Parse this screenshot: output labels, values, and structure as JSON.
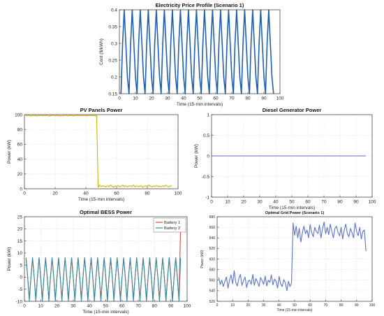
{
  "chart_data": [
    {
      "id": "price",
      "type": "line",
      "title": "Electricity Price Profile (Scenario 1)",
      "xlabel": "Time (15-min intervals)",
      "ylabel": "Cost ($/kWh)",
      "xlim": [
        0,
        100
      ],
      "ylim": [
        0.15,
        0.4
      ],
      "xticks": [
        0,
        10,
        20,
        30,
        40,
        50,
        60,
        70,
        80,
        90,
        100
      ],
      "yticks": [
        0.15,
        0.2,
        0.25,
        0.3,
        0.35,
        0.4
      ],
      "grid": true,
      "series": [
        {
          "color": "#1f5fb0",
          "x": [
            1,
            2,
            3,
            4,
            5,
            6,
            7,
            8,
            9,
            10,
            11,
            12,
            13,
            14,
            15,
            16,
            17,
            18,
            19,
            20,
            21,
            22,
            23,
            24,
            25,
            26,
            27,
            28,
            29,
            30,
            31,
            32,
            33,
            34,
            35,
            36,
            37,
            38,
            39,
            40,
            41,
            42,
            43,
            44,
            45,
            46,
            47,
            48,
            49,
            50,
            51,
            52,
            53,
            54,
            55,
            56,
            57,
            58,
            59,
            60,
            61,
            62,
            63,
            64,
            65,
            66,
            67,
            68,
            69,
            70,
            71,
            72,
            73,
            74,
            75,
            76,
            77,
            78,
            79,
            80,
            81,
            82,
            83,
            84,
            85,
            86,
            87,
            88,
            89,
            90,
            91,
            92,
            93,
            94,
            95,
            96
          ],
          "values": [
            0.15,
            0.3,
            0.4,
            0.3,
            0.2,
            0.15,
            0.3,
            0.4,
            0.3,
            0.2,
            0.15,
            0.3,
            0.4,
            0.3,
            0.2,
            0.15,
            0.3,
            0.4,
            0.3,
            0.2,
            0.15,
            0.3,
            0.4,
            0.3,
            0.2,
            0.15,
            0.3,
            0.4,
            0.3,
            0.2,
            0.15,
            0.3,
            0.4,
            0.3,
            0.2,
            0.15,
            0.3,
            0.4,
            0.3,
            0.2,
            0.15,
            0.3,
            0.4,
            0.3,
            0.2,
            0.15,
            0.3,
            0.4,
            0.3,
            0.2,
            0.15,
            0.3,
            0.4,
            0.3,
            0.2,
            0.15,
            0.3,
            0.4,
            0.3,
            0.2,
            0.15,
            0.3,
            0.4,
            0.3,
            0.2,
            0.15,
            0.3,
            0.4,
            0.3,
            0.2,
            0.15,
            0.3,
            0.4,
            0.3,
            0.2,
            0.15,
            0.3,
            0.4,
            0.3,
            0.2,
            0.15,
            0.3,
            0.4,
            0.3,
            0.2,
            0.15,
            0.3,
            0.4,
            0.3,
            0.2,
            0.15,
            0.3,
            0.4,
            0.3,
            0.2,
            0.15
          ]
        }
      ]
    },
    {
      "id": "pv",
      "type": "line",
      "title": "PV Panels Power",
      "xlabel": "Time (15-min intervals)",
      "ylabel": "Power (kW)",
      "xlim": [
        0,
        100
      ],
      "ylim": [
        0,
        100
      ],
      "xticks": [
        0,
        20,
        40,
        60,
        80,
        100
      ],
      "yticks": [
        0,
        20,
        40,
        60,
        80,
        100
      ],
      "grid": true,
      "series": [
        {
          "color": "#d4b400",
          "x": [
            1,
            2,
            3,
            4,
            5,
            6,
            7,
            8,
            9,
            10,
            11,
            12,
            13,
            14,
            15,
            16,
            17,
            18,
            19,
            20,
            21,
            22,
            23,
            24,
            25,
            26,
            27,
            28,
            29,
            30,
            31,
            32,
            33,
            34,
            35,
            36,
            37,
            38,
            39,
            40,
            41,
            42,
            43,
            44,
            45,
            46,
            47,
            48,
            49,
            50,
            51,
            52,
            53,
            54,
            55,
            56,
            57,
            58,
            59,
            60,
            61,
            62,
            63,
            64,
            65,
            66,
            67,
            68,
            69,
            70,
            71,
            72,
            73,
            74,
            75,
            76,
            77,
            78,
            79,
            80,
            81,
            82,
            83,
            84,
            85,
            86,
            87,
            88,
            89,
            90,
            91,
            92,
            93,
            94,
            95,
            96
          ],
          "values": [
            99,
            98.5,
            99.5,
            98,
            99,
            98.5,
            99.2,
            98,
            99,
            98.6,
            99.4,
            98.2,
            99,
            98.8,
            99.3,
            98.1,
            99,
            98.7,
            99.5,
            98.3,
            99.1,
            98.6,
            99.2,
            98,
            99,
            98.8,
            99.4,
            98.2,
            99.1,
            98.6,
            99.3,
            98.1,
            99,
            98.9,
            99.4,
            98.3,
            99.1,
            98.7,
            99.2,
            98.5,
            99,
            98.8,
            99.3,
            98.4,
            99.1,
            98.6,
            99,
            2,
            5,
            3,
            4,
            3.5,
            2.5,
            4,
            3,
            5,
            3.5,
            2,
            4,
            3,
            4.5,
            2.5,
            3.5,
            5,
            3,
            4,
            2.5,
            3.5,
            4,
            3,
            5,
            2.5,
            4,
            3.5,
            3,
            4.5,
            2,
            3.5,
            4,
            3,
            5,
            3.5,
            2.5,
            4,
            3,
            4.5,
            3,
            3.5,
            2.5,
            4,
            3,
            5,
            3.5,
            2.5,
            4,
            3.5
          ]
        }
      ]
    },
    {
      "id": "diesel",
      "type": "line",
      "title": "Diesel Generator Power",
      "xlabel": "Time (15-min intervals)",
      "ylabel": "Power (kW)",
      "xlim": [
        0,
        100
      ],
      "ylim": [
        -1,
        1
      ],
      "xticks": [
        0,
        10,
        20,
        30,
        40,
        50,
        60,
        70,
        80,
        90,
        100
      ],
      "yticks": [
        -1,
        -0.5,
        0,
        0.5,
        1
      ],
      "grid": true,
      "series": [
        {
          "color": "#7a5cc4",
          "x": [
            1,
            96
          ],
          "values": [
            0,
            0
          ]
        }
      ]
    },
    {
      "id": "bess",
      "type": "line",
      "title": "Optimal BESS Power",
      "xlabel": "Time (15-min intervals)",
      "ylabel": "Power (kW)",
      "xlim": [
        0,
        100
      ],
      "ylim": [
        -10,
        25
      ],
      "xticks": [
        0,
        10,
        20,
        30,
        40,
        50,
        60,
        70,
        80,
        90,
        100
      ],
      "yticks": [
        -10,
        -5,
        0,
        5,
        10,
        15,
        20,
        25
      ],
      "grid": true,
      "legend": "top-right",
      "series": [
        {
          "name": "Battery 1",
          "color": "#e0473f",
          "x": [
            1,
            2,
            3,
            4,
            5,
            6,
            7,
            8,
            9,
            10,
            11,
            12,
            13,
            14,
            15,
            16,
            17,
            18,
            19,
            20,
            21,
            22,
            23,
            24,
            25,
            26,
            27,
            28,
            29,
            30,
            31,
            32,
            33,
            34,
            35,
            36,
            37,
            38,
            39,
            40,
            41,
            42,
            43,
            44,
            45,
            46,
            47,
            48,
            49,
            50,
            51,
            52,
            53,
            54,
            55,
            56,
            57,
            58,
            59,
            60,
            61,
            62,
            63,
            64,
            65,
            66,
            67,
            68,
            69,
            70,
            71,
            72,
            73,
            74,
            75,
            76,
            77,
            78,
            79,
            80,
            81,
            82,
            83,
            84,
            85,
            86,
            87,
            88,
            89,
            90,
            91,
            92,
            93,
            94,
            95,
            96
          ],
          "values": [
            8,
            0,
            -9,
            0,
            8,
            0,
            -9,
            0,
            8,
            0,
            -9,
            0,
            8,
            0,
            -9,
            0,
            8,
            0,
            -9,
            0,
            8,
            0,
            -9,
            0,
            8,
            0,
            -9,
            0,
            8,
            0,
            -9,
            0,
            8,
            0,
            -9,
            0,
            8,
            0,
            -9,
            0,
            8,
            0,
            -9,
            0,
            8,
            0,
            -9,
            0,
            8,
            0,
            -9,
            0,
            8,
            0,
            -9,
            0,
            8,
            0,
            -9,
            0,
            8,
            0,
            -9,
            0,
            8,
            0,
            -9,
            0,
            8,
            0,
            -9,
            0,
            8,
            0,
            -9,
            0,
            8,
            0,
            -9,
            0,
            8,
            0,
            -9,
            0,
            8,
            0,
            -9,
            0,
            8,
            0,
            -9,
            0,
            8,
            0,
            -9,
            21
          ]
        },
        {
          "name": "Battery 2",
          "color": "#2f8f9e",
          "x": [
            1,
            2,
            3,
            4,
            5,
            6,
            7,
            8,
            9,
            10,
            11,
            12,
            13,
            14,
            15,
            16,
            17,
            18,
            19,
            20,
            21,
            22,
            23,
            24,
            25,
            26,
            27,
            28,
            29,
            30,
            31,
            32,
            33,
            34,
            35,
            36,
            37,
            38,
            39,
            40,
            41,
            42,
            43,
            44,
            45,
            46,
            47,
            48,
            49,
            50,
            51,
            52,
            53,
            54,
            55,
            56,
            57,
            58,
            59,
            60,
            61,
            62,
            63,
            64,
            65,
            66,
            67,
            68,
            69,
            70,
            71,
            72,
            73,
            74,
            75,
            76,
            77,
            78,
            79,
            80,
            81,
            82,
            83,
            84,
            85,
            86,
            87,
            88,
            89,
            90,
            91,
            92,
            93,
            94,
            95,
            96
          ],
          "values": [
            8,
            0,
            -10,
            0,
            8,
            0,
            -10,
            0,
            8,
            0,
            -10,
            0,
            8,
            0,
            -10,
            0,
            8,
            0,
            -10,
            0,
            8,
            0,
            -10,
            0,
            8,
            0,
            -10,
            0,
            8,
            0,
            -10,
            0,
            8,
            0,
            -10,
            0,
            8,
            0,
            -10,
            0,
            8,
            0,
            -10,
            0,
            8,
            0,
            -10,
            0,
            8,
            0,
            -10,
            0,
            8,
            0,
            -10,
            0,
            8,
            0,
            -10,
            0,
            8,
            0,
            -10,
            0,
            8,
            0,
            -10,
            0,
            8,
            0,
            -10,
            0,
            8,
            0,
            -10,
            0,
            8,
            0,
            -10,
            0,
            8,
            0,
            -10,
            0,
            8,
            0,
            -10,
            0,
            8,
            0,
            -10,
            0,
            8,
            0,
            -10,
            8
          ]
        }
      ]
    },
    {
      "id": "grid",
      "type": "line",
      "title": "Optimal Grid Power (Scenario 1)",
      "xlabel": "Time (15-min intervals)",
      "ylabel": "Power (kW)",
      "xlim": [
        0,
        100
      ],
      "ylim": [
        520,
        680
      ],
      "xticks": [
        0,
        10,
        20,
        30,
        40,
        50,
        60,
        70,
        80,
        90,
        100
      ],
      "yticks": [
        520,
        540,
        560,
        580,
        600,
        620,
        640,
        660,
        680
      ],
      "grid": true,
      "series": [
        {
          "color": "#5b72d6",
          "x": [
            1,
            2,
            3,
            4,
            5,
            6,
            7,
            8,
            9,
            10,
            11,
            12,
            13,
            14,
            15,
            16,
            17,
            18,
            19,
            20,
            21,
            22,
            23,
            24,
            25,
            26,
            27,
            28,
            29,
            30,
            31,
            32,
            33,
            34,
            35,
            36,
            37,
            38,
            39,
            40,
            41,
            42,
            43,
            44,
            45,
            46,
            47,
            48,
            49,
            50,
            51,
            52,
            53,
            54,
            55,
            56,
            57,
            58,
            59,
            60,
            61,
            62,
            63,
            64,
            65,
            66,
            67,
            68,
            69,
            70,
            71,
            72,
            73,
            74,
            75,
            76,
            77,
            78,
            79,
            80,
            81,
            82,
            83,
            84,
            85,
            86,
            87,
            88,
            89,
            90,
            91,
            92,
            93,
            94,
            95,
            96
          ],
          "values": [
            565,
            552,
            560,
            548,
            558,
            566,
            545,
            560,
            570,
            553,
            578,
            556,
            549,
            563,
            571,
            550,
            559,
            566,
            546,
            558,
            560,
            552,
            571,
            550,
            563,
            557,
            548,
            565,
            559,
            552,
            568,
            549,
            560,
            556,
            570,
            551,
            562,
            558,
            545,
            567,
            553,
            548,
            561,
            555,
            540,
            558,
            548,
            555,
            668,
            645,
            662,
            640,
            658,
            632,
            650,
            662,
            648,
            655,
            640,
            665,
            650,
            642,
            660,
            652,
            648,
            664,
            640,
            657,
            670,
            648,
            660,
            646,
            666,
            652,
            640,
            658,
            662,
            650,
            644,
            660,
            638,
            655,
            666,
            648,
            642,
            658,
            650,
            640,
            668,
            652,
            644,
            660,
            638,
            652,
            655,
            615
          ]
        }
      ]
    }
  ]
}
